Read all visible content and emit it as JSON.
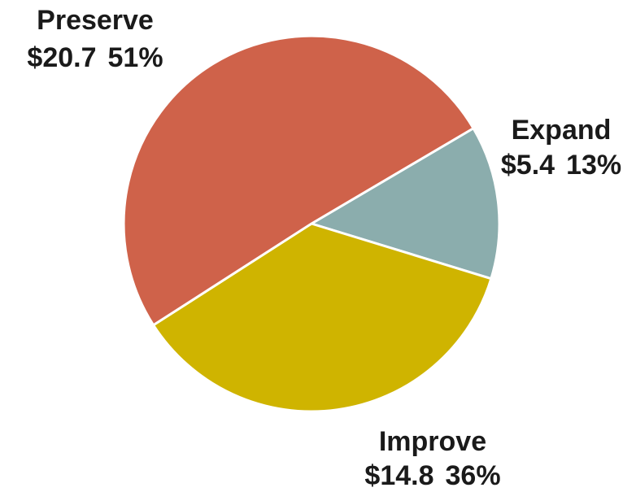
{
  "chart_data": {
    "type": "pie",
    "slices": [
      {
        "name": "Preserve",
        "value": 20.7,
        "value_label": "$20.7",
        "percent_label": "51%",
        "color": "#CF624A"
      },
      {
        "name": "Expand",
        "value": 5.4,
        "value_label": "$5.4",
        "percent_label": "13%",
        "color": "#8BADAD"
      },
      {
        "name": "Improve",
        "value": 14.8,
        "value_label": "$14.8",
        "percent_label": "36%",
        "color": "#CFB400"
      }
    ]
  }
}
